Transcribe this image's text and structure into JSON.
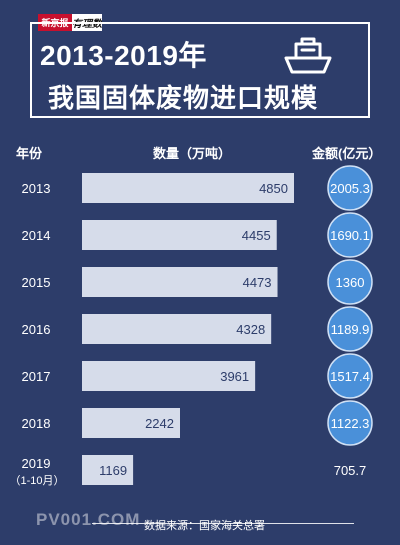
{
  "logo": {
    "part1": "新京报",
    "part2": "有理数"
  },
  "title": {
    "line1": "2013-2019年",
    "line2": "我国固体废物进口规模"
  },
  "headers": {
    "year": "年份",
    "quantity": "数量（万吨）",
    "amount": "金额(亿元）"
  },
  "footer": {
    "source": "数据来源：国家海关总署"
  },
  "watermark": "PV001.COM",
  "colors": {
    "background": "#2d3d6a",
    "bar": "#d6dcea",
    "circle": "#4a90d9",
    "circle_border": "#cfe0f5"
  },
  "chart_data": {
    "type": "bar",
    "categories": [
      "2013",
      "2014",
      "2015",
      "2016",
      "2017",
      "2018",
      "2019"
    ],
    "category_notes": [
      "",
      "",
      "",
      "",
      "",
      "",
      "（1-10月）"
    ],
    "series": [
      {
        "name": "数量（万吨）",
        "values": [
          4850,
          4455,
          4473,
          4328,
          3961,
          2242,
          1169
        ]
      },
      {
        "name": "金额(亿元）",
        "values": [
          2005.3,
          1690.1,
          1360,
          1189.9,
          1517.4,
          1122.3,
          705.7
        ]
      }
    ],
    "value_labels": {
      "quantity": [
        "4850",
        "4455",
        "4473",
        "4328",
        "3961",
        "2242",
        "1169"
      ],
      "amount": [
        "2005.3",
        "1690.1",
        "1360",
        "1189.9",
        "1517.4",
        "1122.3",
        "705.7"
      ]
    },
    "grid": false
  }
}
